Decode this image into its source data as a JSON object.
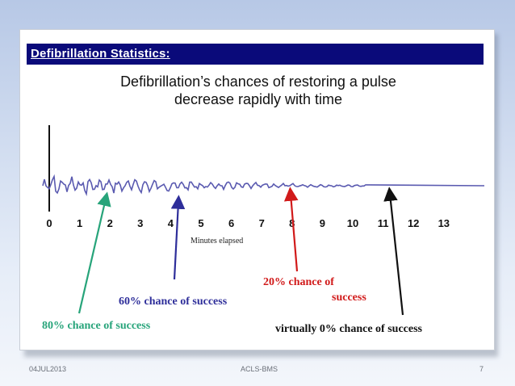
{
  "slide": {
    "header_title": "Defibrillation Statistics:",
    "subtitle_line1": "Defibrillation’s chances of restoring a pulse",
    "subtitle_line2": "decrease rapidly with time"
  },
  "axis": {
    "ticks": [
      "0",
      "1",
      "2",
      "3",
      "4",
      "5",
      "6",
      "7",
      "8",
      "9",
      "10",
      "11",
      "12",
      "13"
    ],
    "xlabel": "Minutes elapsed"
  },
  "annotations": {
    "eighty": "80% chance of success",
    "sixty": "60% chance of success",
    "twenty_line1": "20% chance of",
    "twenty_line2": "success",
    "zero": "virtually 0% chance of success"
  },
  "colors": {
    "header_bg": "#0a0a7a",
    "waveform": "#5a5ab0",
    "eighty": "#27a47a",
    "sixty": "#2e2e9a",
    "twenty": "#d11a1a",
    "zero": "#111111"
  },
  "footer": {
    "date": "04JUL2013",
    "center": "ACLS-BMS",
    "page": "7"
  }
}
